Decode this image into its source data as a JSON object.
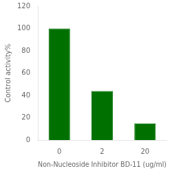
{
  "chart_data": {
    "type": "bar",
    "categories": [
      "0",
      "2",
      "20"
    ],
    "values": [
      100,
      44,
      15
    ],
    "color": "#007000",
    "xlabel": "Non-Nucleoside Inhibitor BD-11 (ug/ml)",
    "ylabel": "Control activity%",
    "ylim": [
      0,
      120
    ],
    "yticks": [
      0,
      20,
      40,
      60,
      80,
      100,
      120
    ],
    "grid": false
  }
}
